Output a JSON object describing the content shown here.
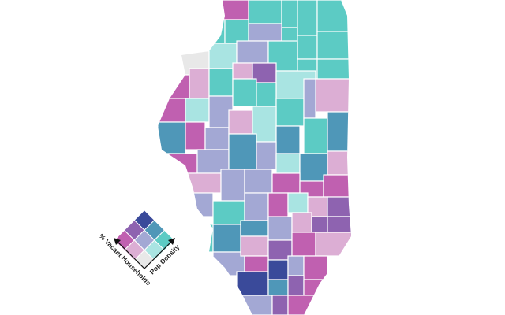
{
  "legend": {
    "x_label": "Pop Density",
    "y_label": "% Vacant Households"
  }
}
